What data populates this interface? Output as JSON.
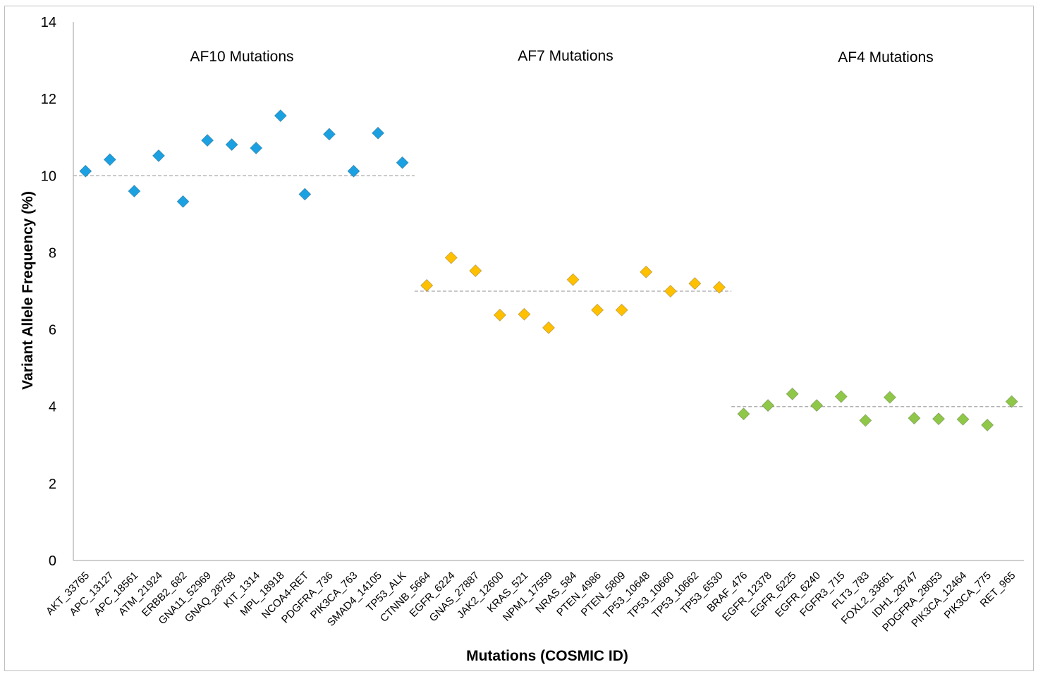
{
  "chart_data": {
    "type": "scatter",
    "xlabel": "Mutations (COSMIC ID)",
    "ylabel": "Variant Allele Frequency (%)",
    "ylim": [
      0,
      14
    ],
    "yticks": [
      0,
      2,
      4,
      6,
      8,
      10,
      12,
      14
    ],
    "grid": false,
    "legend": "none",
    "categories": [
      "AKT_33765",
      "APC_13127",
      "APC_18561",
      "ATM_21924",
      "ERBB2_682",
      "GNA11_52969",
      "GNAQ_28758",
      "KIT_1314",
      "MPL_18918",
      "NCOA4-RET",
      "PDGFRA_736",
      "PIK3CA_763",
      "SMAD4_14105",
      "TP53_ALK",
      "CTNNB_5664",
      "EGFR_6224",
      "GNAS_27887",
      "JAK2_12600",
      "KRAS_521",
      "NPM1_17559",
      "NRAS_584",
      "PTEN_4986",
      "PTEN_5809",
      "TP53_10648",
      "TP53_10660",
      "TP53_10662",
      "TP53_6530",
      "BRAF_476",
      "EGFR_12378",
      "EGFR_6225",
      "EGFR_6240",
      "FGFR3_715",
      "FLT3_783",
      "FOXL2_33661",
      "IDH1_28747",
      "PDGFRA_28053",
      "PIK3CA_12464",
      "PIK3CA_775",
      "RET_965"
    ],
    "series": [
      {
        "color": "#1ba1e2",
        "start_index": 0,
        "values": [
          10.12,
          10.42,
          9.6,
          10.52,
          9.33,
          10.92,
          10.81,
          10.72,
          11.56,
          9.52,
          11.08,
          10.12,
          11.11,
          10.34
        ],
        "reference": 10
      },
      {
        "color": "#ffc000",
        "start_index": 14,
        "values": [
          7.15,
          7.87,
          7.53,
          6.38,
          6.4,
          6.05,
          7.3,
          6.51,
          6.51,
          7.5,
          7.0,
          7.2,
          7.1
        ],
        "reference": 7
      },
      {
        "color": "#8fc848",
        "start_index": 27,
        "values": [
          3.81,
          4.03,
          4.33,
          4.03,
          4.26,
          3.64,
          4.24,
          3.7,
          3.68,
          3.67,
          3.52,
          4.13
        ],
        "reference": 4
      }
    ],
    "annotations": [
      "AF10 Mutations",
      "AF7 Mutations",
      "AF4 Mutations"
    ]
  }
}
